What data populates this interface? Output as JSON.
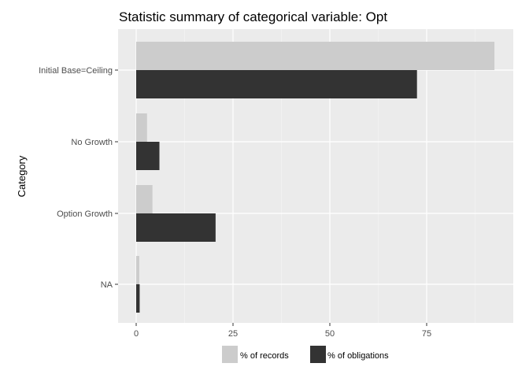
{
  "chart_data": {
    "type": "bar",
    "orientation": "horizontal",
    "title": "Statistic summary of categorical variable:  Opt",
    "xlabel": "",
    "ylabel": "Category",
    "categories": [
      "Initial Base=Ceiling",
      "No Growth",
      "Option Growth",
      "NA"
    ],
    "series": [
      {
        "name": "% of records",
        "values": [
          92.5,
          2.8,
          4.2,
          0.8
        ],
        "color": "#cccccc"
      },
      {
        "name": "% of obligations",
        "values": [
          72.5,
          6.0,
          20.5,
          0.9
        ],
        "color": "#333333"
      }
    ],
    "xlim": [
      0,
      95.5
    ],
    "xticks": [
      0,
      25,
      50,
      75
    ],
    "legend_position": "bottom",
    "panel_background": "#ebebeb",
    "grid": true
  }
}
